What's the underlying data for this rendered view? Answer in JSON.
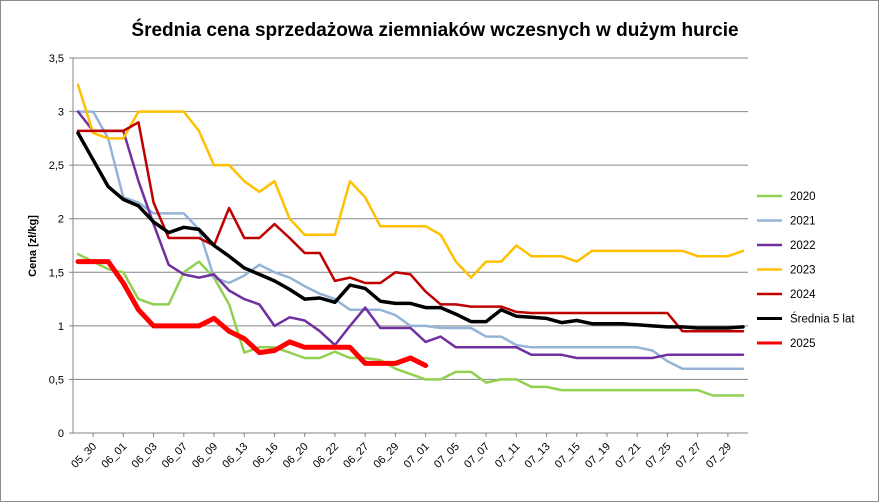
{
  "chart_data": {
    "type": "line",
    "title": "Średnia cena sprzedażowa ziemniaków  wczesnych w dużym hurcie",
    "ylabel": "Cena [zł/kg]",
    "xlabel": "",
    "ylim": [
      0,
      3.5
    ],
    "ytick_labels": [
      "0",
      "0,5",
      "1",
      "1,5",
      "2",
      "2,5",
      "3",
      "3,5"
    ],
    "ytick_values": [
      0,
      0.5,
      1,
      1.5,
      2,
      2.5,
      3,
      3.5
    ],
    "x_tick_labels": [
      "05_30",
      "06_01",
      "06_03",
      "06_07",
      "06_09",
      "06_13",
      "06_16",
      "06_20",
      "06_22",
      "06_27",
      "06_29",
      "07_01",
      "07_05",
      "07_07",
      "07_11",
      "07_13",
      "07_15",
      "07_19",
      "07_21",
      "07_25",
      "07_27",
      "07_29"
    ],
    "grid": "horizontal",
    "legend_position": "right",
    "series": [
      {
        "name": "2020",
        "color": "#92d050",
        "width": 2.5,
        "values": [
          1.67,
          1.6,
          1.53,
          1.5,
          1.25,
          1.2,
          1.2,
          1.5,
          1.6,
          1.45,
          1.2,
          0.75,
          0.8,
          0.8,
          0.75,
          0.7,
          0.7,
          0.76,
          0.7,
          0.7,
          0.68,
          0.6,
          0.55,
          0.5,
          0.5,
          0.57,
          0.57,
          0.47,
          0.5,
          0.5,
          0.43,
          0.43,
          0.4,
          0.4,
          0.4,
          0.4,
          0.4,
          0.4,
          0.4,
          0.4,
          0.4,
          0.4,
          0.35,
          0.35,
          0.35
        ]
      },
      {
        "name": "2021",
        "color": "#95b3d7",
        "width": 2.5,
        "values": [
          3.0,
          3.0,
          2.75,
          2.2,
          2.15,
          2.05,
          2.05,
          2.05,
          1.9,
          1.45,
          1.4,
          1.47,
          1.57,
          1.5,
          1.45,
          1.37,
          1.3,
          1.25,
          1.15,
          1.15,
          1.15,
          1.1,
          1.0,
          1.0,
          0.98,
          0.98,
          0.98,
          0.9,
          0.9,
          0.82,
          0.8,
          0.8,
          0.8,
          0.8,
          0.8,
          0.8,
          0.8,
          0.8,
          0.77,
          0.67,
          0.6,
          0.6,
          0.6,
          0.6,
          0.6
        ]
      },
      {
        "name": "2022",
        "color": "#7030a0",
        "width": 2.5,
        "values": [
          3.0,
          2.82,
          2.82,
          2.82,
          2.35,
          1.95,
          1.57,
          1.48,
          1.45,
          1.48,
          1.33,
          1.25,
          1.2,
          1.0,
          1.08,
          1.05,
          0.95,
          0.82,
          1.0,
          1.17,
          0.98,
          0.98,
          0.98,
          0.85,
          0.9,
          0.8,
          0.8,
          0.8,
          0.8,
          0.8,
          0.73,
          0.73,
          0.73,
          0.7,
          0.7,
          0.7,
          0.7,
          0.7,
          0.7,
          0.73,
          0.73,
          0.73,
          0.73,
          0.73,
          0.73
        ]
      },
      {
        "name": "2023",
        "color": "#ffc000",
        "width": 2.5,
        "values": [
          3.25,
          2.8,
          2.75,
          2.75,
          3.0,
          3.0,
          3.0,
          3.0,
          2.82,
          2.5,
          2.5,
          2.35,
          2.25,
          2.35,
          2.0,
          1.85,
          1.85,
          1.85,
          2.35,
          2.2,
          1.93,
          1.93,
          1.93,
          1.93,
          1.85,
          1.6,
          1.45,
          1.6,
          1.6,
          1.75,
          1.65,
          1.65,
          1.65,
          1.6,
          1.7,
          1.7,
          1.7,
          1.7,
          1.7,
          1.7,
          1.7,
          1.65,
          1.65,
          1.65,
          1.7
        ]
      },
      {
        "name": "2024",
        "color": "#c00000",
        "width": 2.5,
        "values": [
          2.82,
          2.82,
          2.82,
          2.82,
          2.9,
          2.15,
          1.82,
          1.82,
          1.82,
          1.75,
          2.1,
          1.82,
          1.82,
          1.95,
          1.82,
          1.68,
          1.68,
          1.42,
          1.45,
          1.4,
          1.4,
          1.5,
          1.48,
          1.32,
          1.2,
          1.2,
          1.18,
          1.18,
          1.18,
          1.13,
          1.12,
          1.12,
          1.12,
          1.12,
          1.12,
          1.12,
          1.12,
          1.12,
          1.12,
          1.12,
          0.95,
          0.95,
          0.95,
          0.95,
          0.95
        ]
      },
      {
        "name": "Średnia 5 lat",
        "color": "#000000",
        "width": 3.5,
        "values": [
          2.8,
          2.55,
          2.3,
          2.18,
          2.12,
          1.97,
          1.87,
          1.92,
          1.9,
          1.75,
          1.65,
          1.54,
          1.48,
          1.42,
          1.34,
          1.25,
          1.26,
          1.22,
          1.38,
          1.35,
          1.23,
          1.21,
          1.21,
          1.17,
          1.17,
          1.11,
          1.04,
          1.04,
          1.15,
          1.09,
          1.08,
          1.07,
          1.03,
          1.05,
          1.02,
          1.02,
          1.02,
          1.01,
          1.0,
          0.99,
          0.99,
          0.98,
          0.98,
          0.98,
          0.99
        ]
      },
      {
        "name": "2025",
        "color": "#ff0000",
        "width": 5,
        "values": [
          1.6,
          1.6,
          1.6,
          1.4,
          1.15,
          1.0,
          1.0,
          1.0,
          1.0,
          1.07,
          0.95,
          0.88,
          0.75,
          0.77,
          0.85,
          0.8,
          0.8,
          0.8,
          0.8,
          0.65,
          0.65,
          0.65,
          0.7,
          0.63
        ]
      }
    ]
  }
}
